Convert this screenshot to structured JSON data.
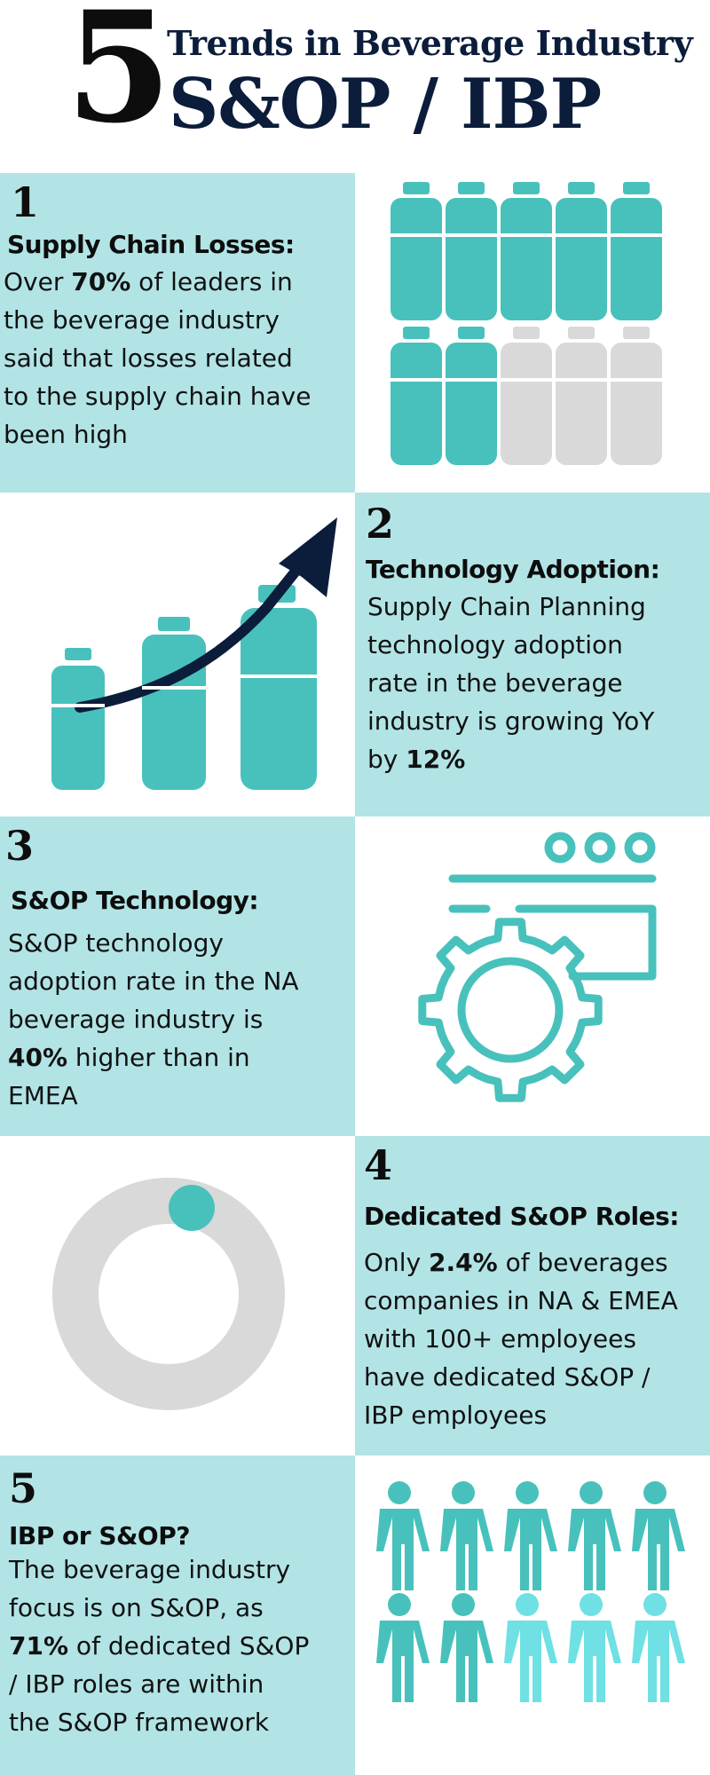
{
  "header": {
    "number": "5",
    "subtitle": "Trends in Beverage Industry",
    "title": "S&OP / IBP"
  },
  "trends": [
    {
      "number": "1",
      "heading": "Supply Chain Losses:",
      "lines": [
        "Over ",
        "70%",
        " of leaders in",
        "the beverage industry",
        "said that losses related",
        "to the supply chain have",
        "been high"
      ],
      "graphic": "bottle-grid-icon",
      "filled": 7,
      "total": 10
    },
    {
      "number": "2",
      "heading": "Technology Adoption:",
      "lines": [
        "Supply Chain Planning",
        "technology adoption",
        "rate in the beverage",
        "industry is growing YoY",
        "by ",
        "12%"
      ],
      "graphic": "growth-bottles-arrow-icon"
    },
    {
      "number": "3",
      "heading": "S&OP Technology:",
      "lines": [
        "S&OP technology",
        "adoption rate in the NA",
        "beverage industry is",
        "40%",
        " higher than in",
        "EMEA"
      ],
      "graphic": "gear-window-icon"
    },
    {
      "number": "4",
      "heading": "Dedicated S&OP Roles:",
      "lines": [
        "Only ",
        "2.4%",
        " of beverages",
        "companies in NA & EMEA",
        "with 100+ employees",
        "have dedicated S&OP /",
        "IBP employees"
      ],
      "graphic": "donut-chart-icon",
      "value_percent": 2.4
    },
    {
      "number": "5",
      "heading": "IBP or S&OP?",
      "lines": [
        "The beverage industry",
        "focus is on S&OP, as",
        "71%",
        " of dedicated S&OP",
        "/ IBP roles are within",
        "the S&OP framework"
      ],
      "graphic": "people-grid-icon",
      "filled": 7,
      "total": 10
    }
  ],
  "colors": {
    "panel_tint": "#b2e4e6",
    "teal": "#48c1bc",
    "light_teal": "#6fe0e3",
    "grey": "#d9d9d9",
    "navy": "#0b1d3a"
  }
}
